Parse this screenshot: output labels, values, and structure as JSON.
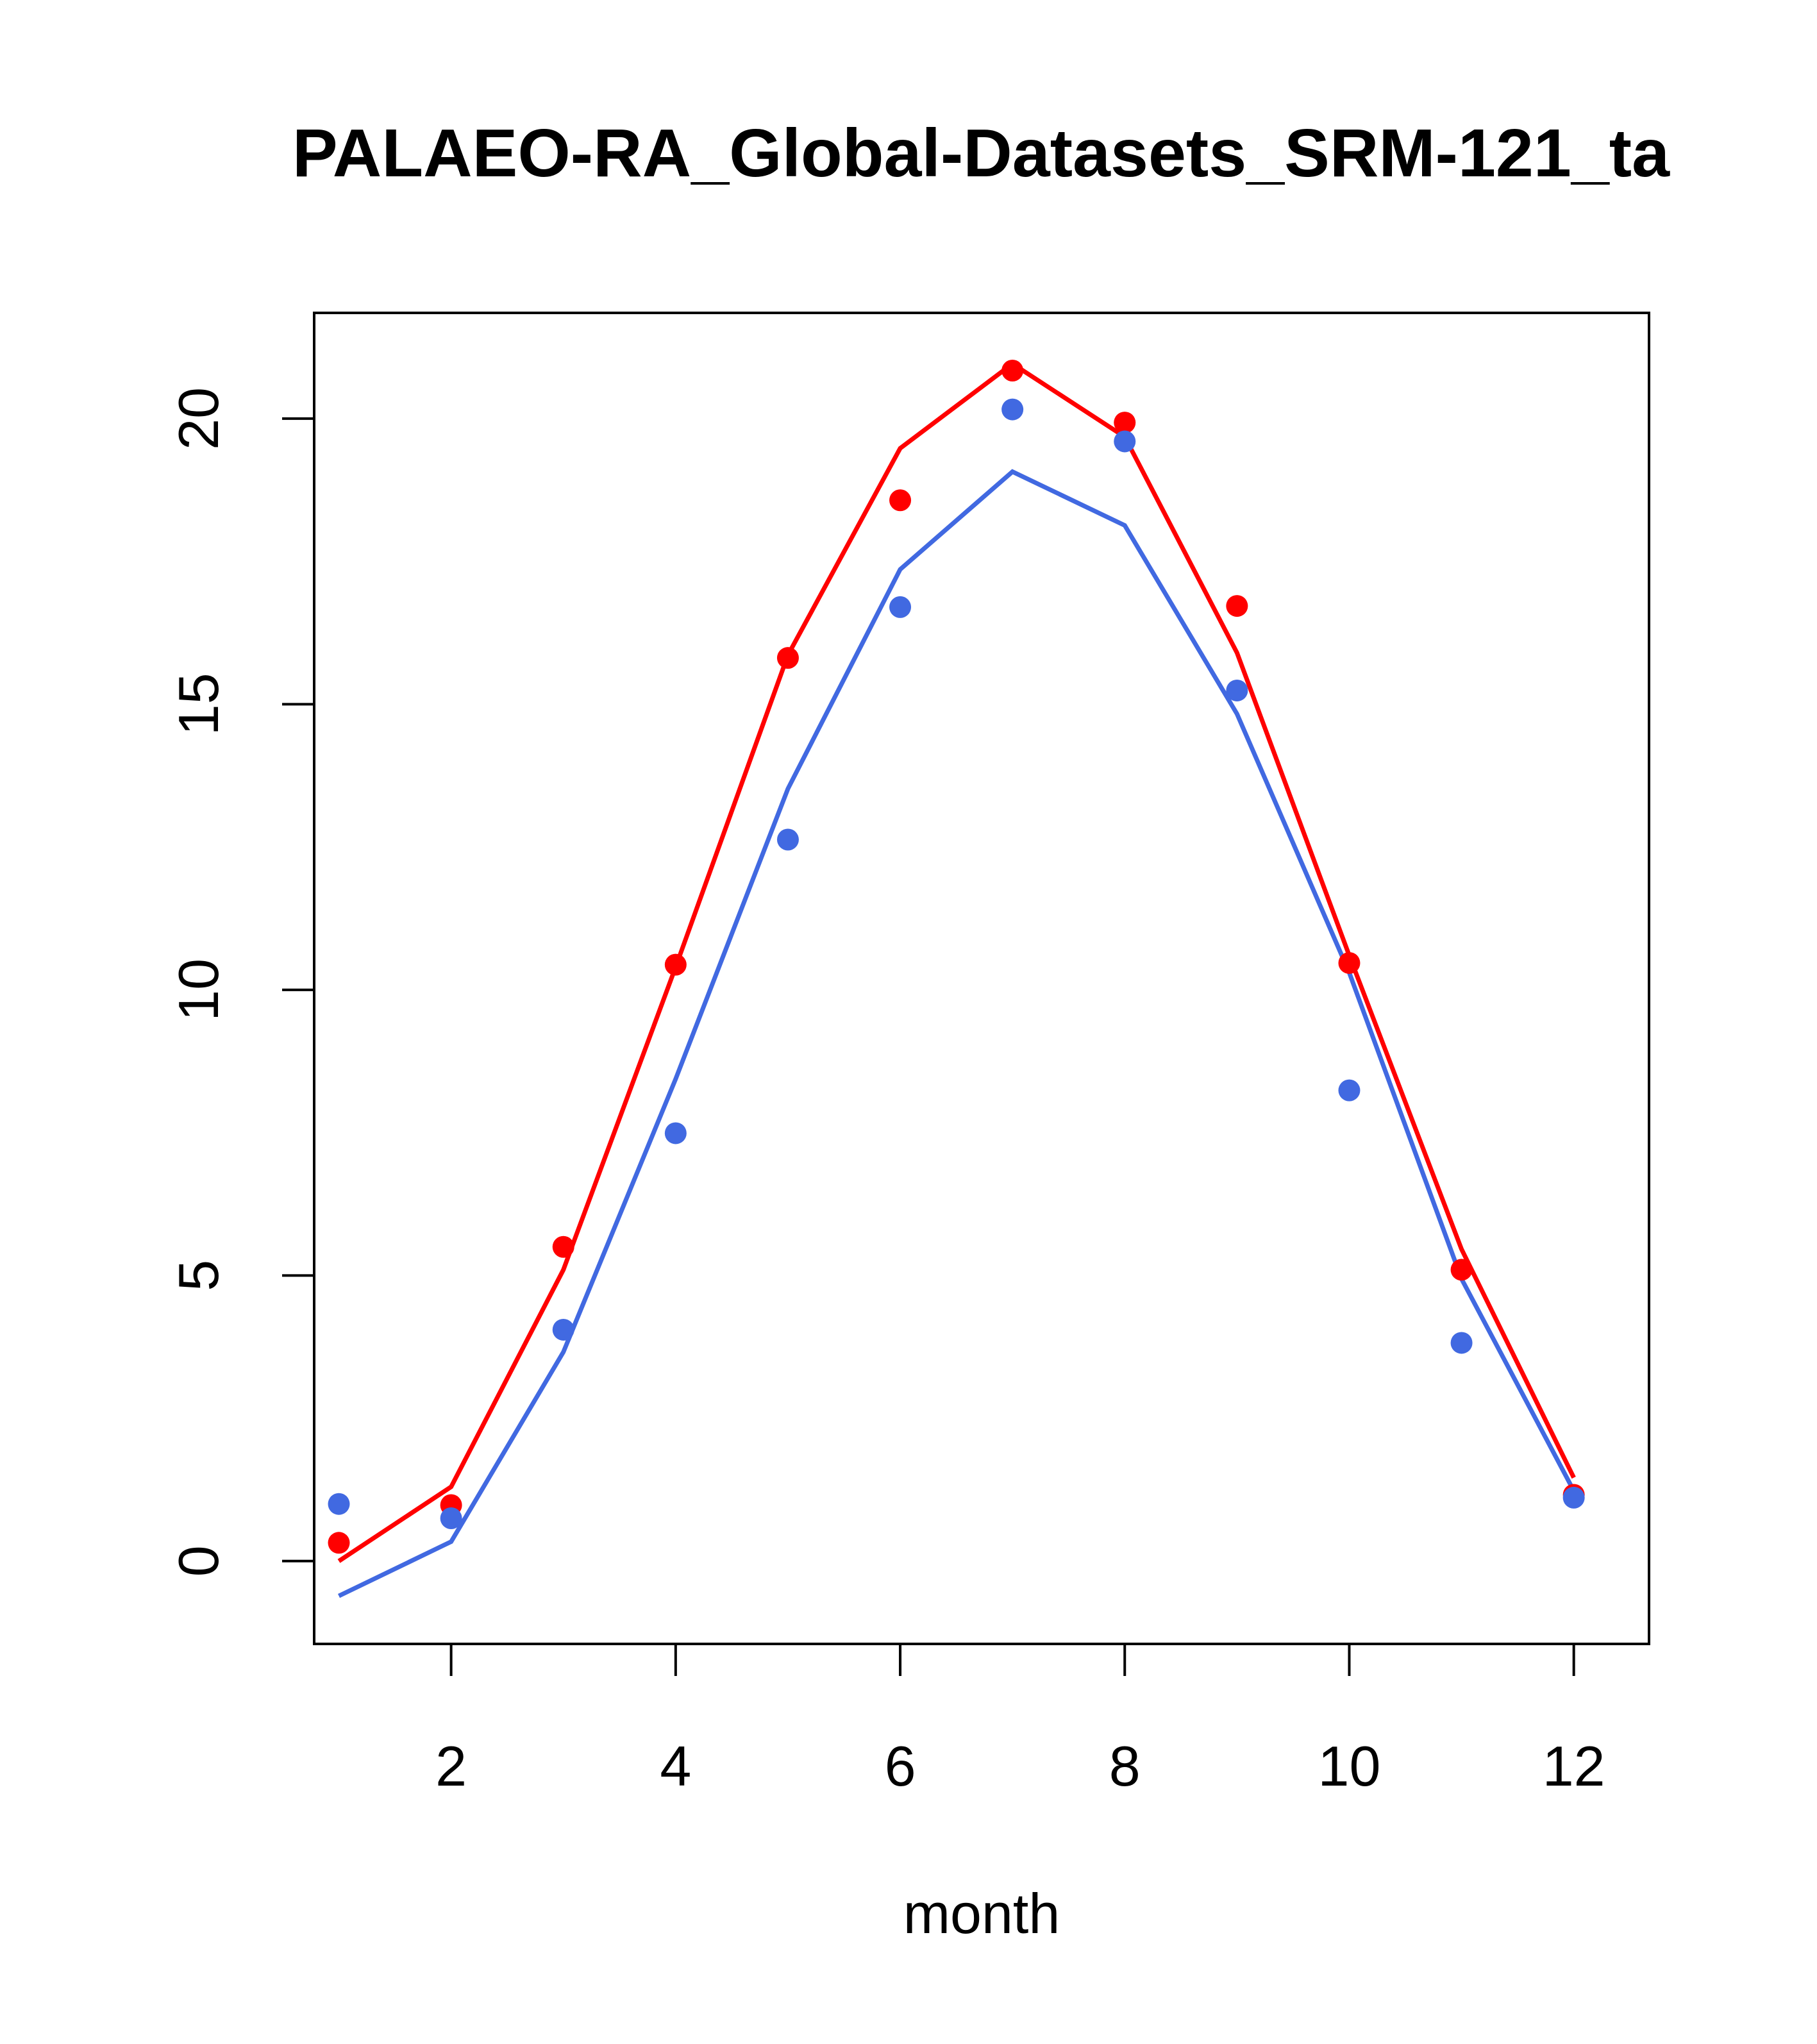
{
  "chart_data": {
    "type": "line",
    "title": "PALAEO-RA_Global-Datasets_SRM-121_ta",
    "xlabel": "month",
    "ylabel": "",
    "xlim": [
      0.78,
      12.67
    ],
    "ylim": [
      -1.45,
      21.85
    ],
    "x_ticks": [
      2,
      4,
      6,
      8,
      10,
      12
    ],
    "y_ticks": [
      0,
      5,
      10,
      15,
      20
    ],
    "grid": false,
    "x": [
      1,
      2,
      3,
      4,
      5,
      6,
      7,
      8,
      9,
      10,
      11,
      12
    ],
    "series": [
      {
        "name": "red-line",
        "kind": "line",
        "color": "#FF0000",
        "values": [
          0.0,
          1.3,
          5.1,
          10.4,
          15.86,
          19.48,
          20.96,
          19.68,
          15.9,
          10.6,
          5.46,
          1.46
        ]
      },
      {
        "name": "blue-line",
        "kind": "line",
        "color": "#4169E1",
        "values": [
          -0.61,
          0.34,
          3.66,
          8.44,
          13.52,
          17.36,
          19.07,
          18.13,
          14.83,
          10.3,
          4.94,
          1.23
        ]
      },
      {
        "name": "red-points",
        "kind": "points",
        "color": "#FF0000",
        "values": [
          0.32,
          0.98,
          5.5,
          10.44,
          15.81,
          18.57,
          20.84,
          19.93,
          16.72,
          10.47,
          5.1,
          1.16
        ]
      },
      {
        "name": "blue-points",
        "kind": "points",
        "color": "#4169E1",
        "values": [
          1.0,
          0.75,
          4.05,
          7.49,
          12.63,
          16.7,
          20.16,
          19.6,
          15.24,
          8.24,
          3.82,
          1.11
        ]
      }
    ]
  }
}
